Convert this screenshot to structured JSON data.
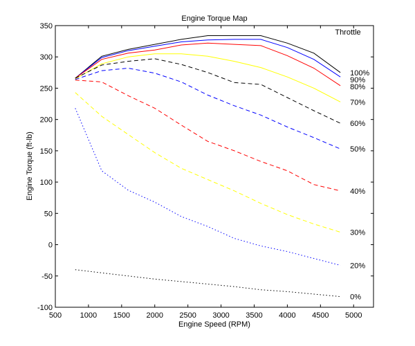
{
  "chart_data": {
    "type": "line",
    "title": "Engine Torque Map",
    "xlabel": "Engine Speed (RPM)",
    "ylabel": "Engine Torque (ft-lb)",
    "xlim": [
      500,
      5300
    ],
    "ylim": [
      -100,
      350
    ],
    "xticks": [
      "500",
      "1000",
      "1500",
      "2000",
      "2500",
      "3000",
      "3500",
      "4000",
      "4500",
      "5000"
    ],
    "yticks": [
      "-100",
      "-50",
      "0",
      "50",
      "100",
      "150",
      "200",
      "250",
      "300",
      "350"
    ],
    "legend_title": "Throttle",
    "grid": false,
    "x": [
      800,
      1200,
      1600,
      2000,
      2400,
      2800,
      3200,
      3600,
      4000,
      4400,
      4800
    ],
    "series": [
      {
        "name": "100%",
        "color": "#000000",
        "style": "solid",
        "values": [
          266,
          301,
          312,
          320,
          328,
          334,
          334,
          334,
          322,
          306,
          275
        ]
      },
      {
        "name": "90%",
        "color": "#0000ff",
        "style": "solid",
        "values": [
          266,
          299,
          310,
          317,
          324,
          327,
          328,
          328,
          315,
          296,
          268
        ]
      },
      {
        "name": "80%",
        "color": "#ff0000",
        "style": "solid",
        "values": [
          266,
          296,
          306,
          311,
          319,
          322,
          320,
          318,
          302,
          282,
          254
        ]
      },
      {
        "name": "70%",
        "color": "#ffff00",
        "style": "solid",
        "values": [
          265,
          289,
          300,
          305,
          305,
          301,
          293,
          283,
          268,
          250,
          228
        ]
      },
      {
        "name": "60%",
        "color": "#000000",
        "style": "dashed",
        "values": [
          266,
          287,
          293,
          297,
          288,
          275,
          259,
          256,
          235,
          214,
          194
        ]
      },
      {
        "name": "50%",
        "color": "#0000ff",
        "style": "dashed",
        "values": [
          264,
          278,
          282,
          274,
          260,
          239,
          222,
          207,
          188,
          171,
          153
        ]
      },
      {
        "name": "40%",
        "color": "#ff0000",
        "style": "dashed",
        "values": [
          263,
          260,
          238,
          218,
          191,
          165,
          150,
          133,
          118,
          96,
          86
        ]
      },
      {
        "name": "30%",
        "color": "#ffff00",
        "style": "dashed",
        "values": [
          243,
          205,
          176,
          147,
          122,
          104,
          86,
          66,
          48,
          33,
          20
        ]
      },
      {
        "name": "20%",
        "color": "#0000ff",
        "style": "dotted",
        "values": [
          218,
          118,
          87,
          68,
          45,
          29,
          10,
          -2,
          -11,
          -22,
          -33
        ]
      },
      {
        "name": "0%",
        "color": "#000000",
        "style": "dotted",
        "values": [
          -40,
          -45,
          -50,
          -55,
          -59,
          -63,
          -67,
          -72,
          -75,
          -79,
          -83
        ]
      }
    ]
  }
}
